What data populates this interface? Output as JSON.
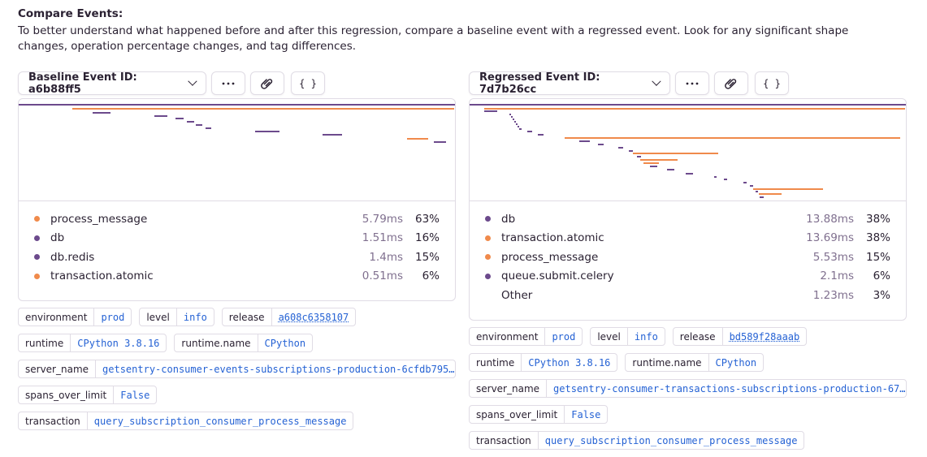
{
  "header": {
    "title": "Compare Events:",
    "description": "To better understand what happened before and after this regression, compare a baseline event with a regressed event. Look for any significant shape changes, operation percentage changes, and tag differences."
  },
  "colors": {
    "purple": "#6c4a8c",
    "orange": "#f08a4b",
    "tagValue": "#2562d4"
  },
  "baseline": {
    "event_label": "Baseline Event ID: a6b88ff5",
    "more_icon": "ellipsis-icon",
    "link_icon": "paperclip-icon",
    "json_label": "{ }",
    "legend": [
      {
        "name": "process_message",
        "duration": "5.79ms",
        "percent": "63%",
        "color": "#f08a4b"
      },
      {
        "name": "db",
        "duration": "1.51ms",
        "percent": "16%",
        "color": "#6c4a8c"
      },
      {
        "name": "db.redis",
        "duration": "1.4ms",
        "percent": "15%",
        "color": "#6c4a8c"
      },
      {
        "name": "transaction.atomic",
        "duration": "0.51ms",
        "percent": "6%",
        "color": "#f08a4b"
      }
    ],
    "tags": {
      "environment": {
        "key": "environment",
        "value": "prod"
      },
      "level": {
        "key": "level",
        "value": "info"
      },
      "release": {
        "key": "release",
        "value": "a608c6358107"
      },
      "runtime": {
        "key": "runtime",
        "value": "CPython 3.8.16"
      },
      "runtime_name": {
        "key": "runtime.name",
        "value": "CPython"
      },
      "server_name": {
        "key": "server_name",
        "value": "getsentry-consumer-events-subscriptions-production-6cfdb795…"
      },
      "spans_over_limit": {
        "key": "spans_over_limit",
        "value": "False"
      },
      "transaction": {
        "key": "transaction",
        "value": "query_subscription_consumer_process_message"
      }
    }
  },
  "regressed": {
    "event_label": "Regressed Event ID: 7d7b26cc",
    "more_icon": "ellipsis-icon",
    "link_icon": "paperclip-icon",
    "json_label": "{ }",
    "legend": [
      {
        "name": "db",
        "duration": "13.88ms",
        "percent": "38%",
        "color": "#6c4a8c"
      },
      {
        "name": "transaction.atomic",
        "duration": "13.69ms",
        "percent": "38%",
        "color": "#f08a4b"
      },
      {
        "name": "process_message",
        "duration": "5.53ms",
        "percent": "15%",
        "color": "#f08a4b"
      },
      {
        "name": "queue.submit.celery",
        "duration": "2.1ms",
        "percent": "6%",
        "color": "#6c4a8c"
      },
      {
        "name": "Other",
        "duration": "1.23ms",
        "percent": "3%",
        "color": ""
      }
    ],
    "tags": {
      "environment": {
        "key": "environment",
        "value": "prod"
      },
      "level": {
        "key": "level",
        "value": "info"
      },
      "release": {
        "key": "release",
        "value": "bd589f28aaab"
      },
      "runtime": {
        "key": "runtime",
        "value": "CPython 3.8.16"
      },
      "runtime_name": {
        "key": "runtime.name",
        "value": "CPython"
      },
      "server_name": {
        "key": "server_name",
        "value": "getsentry-consumer-transactions-subscriptions-production-67…"
      },
      "spans_over_limit": {
        "key": "spans_over_limit",
        "value": "False"
      },
      "transaction": {
        "key": "transaction",
        "value": "query_subscription_consumer_process_message"
      }
    }
  }
}
